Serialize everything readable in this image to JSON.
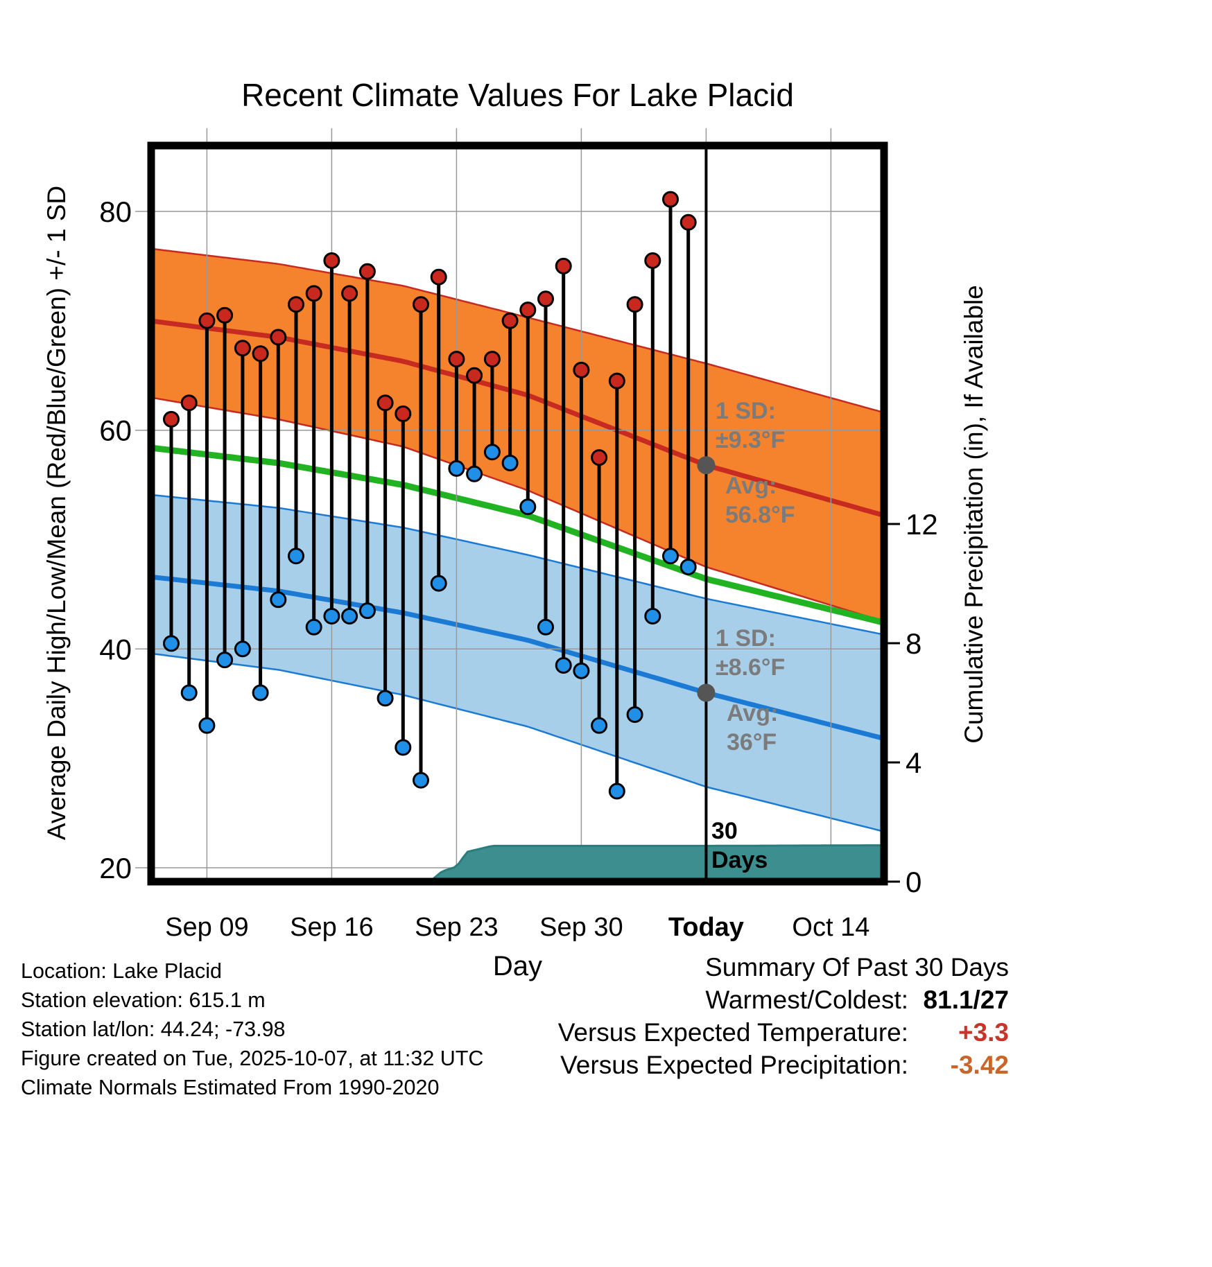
{
  "chart_data": {
    "type": "line",
    "title": "Recent Climate Values For Lake Placid",
    "xlabel": "Day",
    "ylabel_left": "Average Daily High/Low/Mean (Red/Blue/Green) +/- 1 SD",
    "ylabel_right": "Cumulative Precipitation (in), If Available",
    "ylim_left": [
      18.7,
      86.0
    ],
    "ylim_right": [
      0,
      24.7
    ],
    "day_range": [
      -1.13,
      40
    ],
    "grid": true,
    "legend_position": "none",
    "y_left_ticks": [
      20,
      40,
      60,
      80
    ],
    "y_right_ticks": [
      0,
      4,
      8,
      12
    ],
    "x_ticks": [
      {
        "label": "Sep 09",
        "day": 2,
        "bold": false,
        "today": false
      },
      {
        "label": "Sep 16",
        "day": 9,
        "bold": false,
        "today": false
      },
      {
        "label": "Sep 23",
        "day": 16,
        "bold": false,
        "today": false
      },
      {
        "label": "Sep 30",
        "day": 23,
        "bold": false,
        "today": false
      },
      {
        "label": "Today",
        "day": 30,
        "bold": true,
        "today": true
      },
      {
        "label": "Oct 14",
        "day": 37,
        "bold": false,
        "today": false
      }
    ],
    "daily": {
      "labels": [
        "Sep 07",
        "Sep 08",
        "Sep 09",
        "Sep 10",
        "Sep 11",
        "Sep 12",
        "Sep 13",
        "Sep 14",
        "Sep 15",
        "Sep 16",
        "Sep 17",
        "Sep 18",
        "Sep 19",
        "Sep 20",
        "Sep 21",
        "Sep 22",
        "Sep 23",
        "Sep 24",
        "Sep 25",
        "Sep 26",
        "Sep 27",
        "Sep 28",
        "Sep 29",
        "Sep 30",
        "Oct 01",
        "Oct 02",
        "Oct 03",
        "Oct 04",
        "Oct 05",
        "Oct 06"
      ],
      "day_offsets": [
        0,
        1,
        2,
        3,
        4,
        5,
        6,
        7,
        8,
        9,
        10,
        11,
        12,
        13,
        14,
        15,
        16,
        17,
        18,
        19,
        20,
        21,
        22,
        23,
        24,
        25,
        26,
        27,
        28,
        29
      ],
      "high": [
        61,
        62.5,
        70,
        70.5,
        67.5,
        67,
        68.5,
        71.5,
        72.5,
        75.5,
        72.5,
        74.5,
        62.5,
        61.5,
        71.5,
        74,
        66.5,
        65,
        66.5,
        70,
        71,
        72,
        75,
        65.5,
        57.5,
        64.5,
        71.5,
        75.5,
        81.1,
        79
      ],
      "low": [
        40.5,
        36,
        33,
        39,
        40,
        36,
        44.5,
        48.5,
        42,
        43,
        43,
        43.5,
        35.5,
        31,
        28,
        46,
        56.5,
        56,
        58,
        57,
        53,
        42,
        38.5,
        38,
        33,
        27,
        34,
        43,
        48.5,
        47.5
      ]
    },
    "climatology": {
      "days": [
        -1.2,
        6,
        13,
        20,
        30,
        40
      ],
      "high_upper": [
        76.6,
        75.2,
        73.2,
        70.3,
        66.1,
        61.6
      ],
      "high_avg": [
        70.0,
        68.5,
        66.3,
        63.2,
        56.8,
        52.2
      ],
      "high_lower": [
        63.0,
        61.0,
        58.5,
        54.5,
        47.5,
        42.5
      ],
      "mean": [
        58.4,
        57.0,
        55.0,
        52.2,
        46.4,
        42.4
      ],
      "low_upper": [
        54.1,
        52.9,
        51.1,
        48.6,
        44.6,
        41.3
      ],
      "low_avg": [
        46.6,
        45.3,
        43.3,
        40.8,
        36.0,
        31.8
      ],
      "low_lower": [
        39.6,
        38.1,
        35.8,
        32.9,
        27.4,
        23.3
      ]
    },
    "precip": {
      "days": [
        -1.2,
        14.5,
        15.2,
        16.0,
        16.6,
        18.0,
        30,
        40
      ],
      "values": [
        0,
        0,
        0.35,
        0.5,
        1.0,
        1.2,
        1.2,
        1.22
      ]
    },
    "avg_markers": [
      {
        "day": 30,
        "temp": 56.8
      },
      {
        "day": 30,
        "temp": 36
      }
    ]
  },
  "annotations": {
    "high_sd": {
      "line1": "1 SD:",
      "line2": "±9.3°F"
    },
    "high_avg": {
      "line1": "Avg:",
      "line2": "56.8°F"
    },
    "low_sd": {
      "line1": "1 SD:",
      "line2": "±8.6°F"
    },
    "low_avg": {
      "line1": "Avg:",
      "line2": "36°F"
    },
    "period": {
      "line1": "30",
      "line2": "Days"
    }
  },
  "footer": {
    "lines": [
      "Location: Lake Placid",
      "Station elevation: 615.1 m",
      "Station lat/lon: 44.24; -73.98",
      "Figure created on Tue, 2025-10-07, at 11:32 UTC",
      "Climate Normals Estimated From 1990-2020"
    ]
  },
  "summary": {
    "heading": "Summary Of Past 30 Days",
    "rows": [
      {
        "label": "Warmest/Coldest:",
        "value": "81.1/27",
        "color": "#000000"
      },
      {
        "label": "Versus Expected Temperature:",
        "value": "+3.3",
        "color": "#C7342A"
      },
      {
        "label": "Versus Expected Precipitation:",
        "value": "-3.42",
        "color": "#C6662A"
      }
    ]
  },
  "colors": {
    "high_band": "#F5822D",
    "high_line": "#C62A21",
    "low_band": "#A8CFEA",
    "low_line": "#1B7AD4",
    "mean_line": "#21B321",
    "high_dot": "#C8281E",
    "low_dot": "#1F8FE8",
    "stem": "#000000",
    "precip_fill": "#3D8E8E",
    "precip_edge": "#2B7D7D",
    "grid": "#999999",
    "today_line": "#000000",
    "annotation_gray": "#7B7B7B",
    "avg_dot": "#555555"
  }
}
